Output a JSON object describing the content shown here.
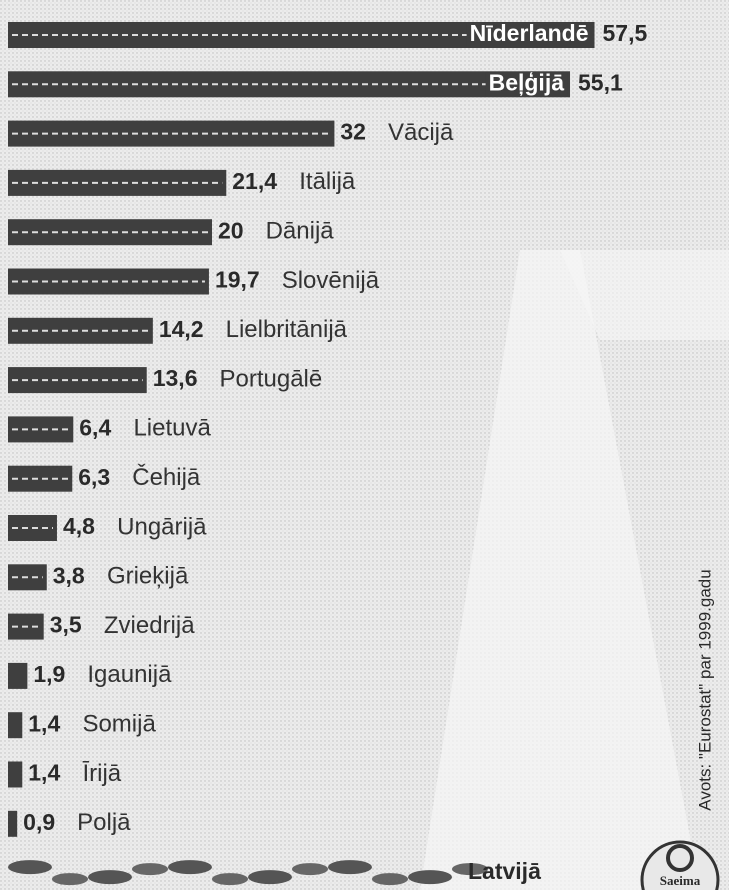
{
  "chart_data": {
    "type": "hbar",
    "categories": [
      "Nīderlandē",
      "Beļģijā",
      "Vācijā",
      "Itālijā",
      "Dānijā",
      "Slovēnijā",
      "Lielbritānijā",
      "Portugālē",
      "Lietuvā",
      "Čehijā",
      "Ungārijā",
      "Grieķijā",
      "Zviedrijā",
      "Igaunijā",
      "Somijā",
      "Īrijā",
      "Poljā",
      "Latvijā"
    ],
    "values": [
      57.5,
      55.1,
      32,
      21.4,
      20,
      19.7,
      14.2,
      13.6,
      6.4,
      6.3,
      4.8,
      3.8,
      3.5,
      1.9,
      1.4,
      1.4,
      0.9,
      null
    ],
    "value_labels": [
      "57,5",
      "55,1",
      "32",
      "21,4",
      "20",
      "19,7",
      "14,2",
      "13,6",
      "6,4",
      "6,3",
      "4,8",
      "3,8",
      "3,5",
      "1,9",
      "1,4",
      "1,4",
      "0,9",
      null
    ],
    "color": "#3f3f3f",
    "source": "Avots: \"Eurostat\" par 1999.gadu",
    "logo_text": "Saeima"
  }
}
